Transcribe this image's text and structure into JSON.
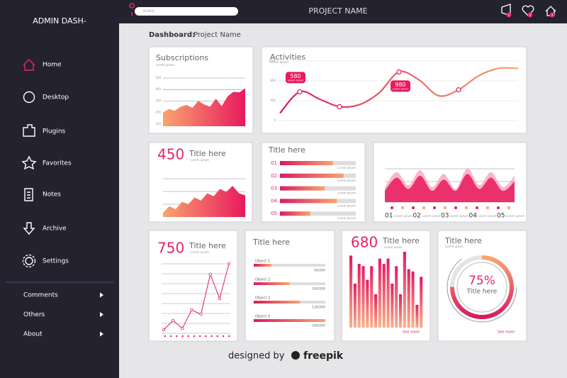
{
  "sidebar": {
    "title": "ADMIN DASH-",
    "nav": [
      "Home",
      "Desktop",
      "Plugins",
      "Favorites",
      "Notes",
      "Archive",
      "Settings"
    ],
    "sub": [
      "Comments",
      "Others",
      "About"
    ]
  },
  "topbar": {
    "search": "SEARCH",
    "title": "PROJECT NAME",
    "badges": [
      "1",
      "2",
      "3"
    ]
  },
  "breadcrumb": {
    "label": "Dashboard:",
    "page": "Project Name"
  },
  "subscriptions": {
    "title": "Subscriptions",
    "subtitle": "Lorem ipsum",
    "ylim": [
      80,
      500
    ],
    "yticks": [
      100,
      200,
      300,
      400,
      500
    ],
    "values": [
      200,
      230,
      215,
      250,
      265,
      240,
      300,
      270,
      250,
      320,
      255,
      340,
      380,
      375,
      410
    ]
  },
  "activities": {
    "title": "Activities",
    "subtitle": "Lorem ipsum",
    "ylim": [
      0,
      1200
    ],
    "yticks": [
      0,
      400,
      800,
      1200
    ],
    "values": [
      150,
      580,
      430,
      280,
      320,
      560,
      980,
      820,
      500,
      620,
      900,
      1050,
      1050
    ],
    "callout_note": "Lorem ipsum"
  },
  "stat450": {
    "value": 450,
    "title": "Title here",
    "subtitle": "Lorem ipsum",
    "ylim": [
      0,
      100
    ],
    "values": [
      10,
      25,
      18,
      35,
      30,
      45,
      38,
      55,
      48,
      65,
      58,
      72,
      55,
      50
    ]
  },
  "progress": {
    "title": "Title here",
    "rows": [
      {
        "label": "01",
        "value": 70
      },
      {
        "label": "02",
        "value": 84
      },
      {
        "label": "03",
        "value": 59
      },
      {
        "label": "04",
        "value": 75
      },
      {
        "label": "05",
        "value": 40
      }
    ],
    "note": "Lorem ipsum"
  },
  "waves": {
    "ylim": [
      0,
      100
    ],
    "categories": [
      "01",
      "02",
      "03",
      "04",
      "05"
    ],
    "series": [
      {
        "color": "#f7a6bd",
        "values": [
          40,
          80,
          45,
          85,
          40,
          75,
          35,
          90,
          45,
          80,
          40,
          70
        ]
      },
      {
        "color": "#e8195e",
        "values": [
          30,
          65,
          35,
          70,
          30,
          60,
          30,
          75,
          35,
          65,
          30,
          55
        ]
      }
    ]
  },
  "stat750": {
    "value": 750,
    "title": "Title here",
    "subtitle": "Lorem ipsum",
    "ylim": [
      0,
      100
    ],
    "values": [
      5,
      18,
      7,
      33,
      27,
      83,
      49,
      98
    ]
  },
  "objects": {
    "title": "Title here",
    "rows": [
      {
        "name": "Object 1",
        "value": 50,
        "max": 200,
        "label": "50/200"
      },
      {
        "name": "Object 2",
        "value": 100,
        "max": 200,
        "label": "100/200"
      },
      {
        "name": "Object 3",
        "value": 130,
        "max": 200,
        "label": "130/200"
      },
      {
        "name": "Object 4",
        "value": 200,
        "max": 200,
        "label": "200/200"
      }
    ]
  },
  "stat680": {
    "value": 680,
    "title": "Title here",
    "subtitle": "Lorem ipsum",
    "ylim": [
      0,
      100
    ],
    "values": [
      95,
      58,
      84,
      81,
      63,
      81,
      44,
      91,
      84,
      91,
      58,
      81,
      44,
      100,
      77,
      74,
      30,
      67
    ],
    "more": "See more"
  },
  "donut": {
    "title": "Title here",
    "subtitle": "Lorem ipsum",
    "value": 75,
    "label": "75%",
    "inner": "Title here",
    "more": "See more"
  },
  "footer": {
    "text": "designed by",
    "brand": "freepik"
  }
}
